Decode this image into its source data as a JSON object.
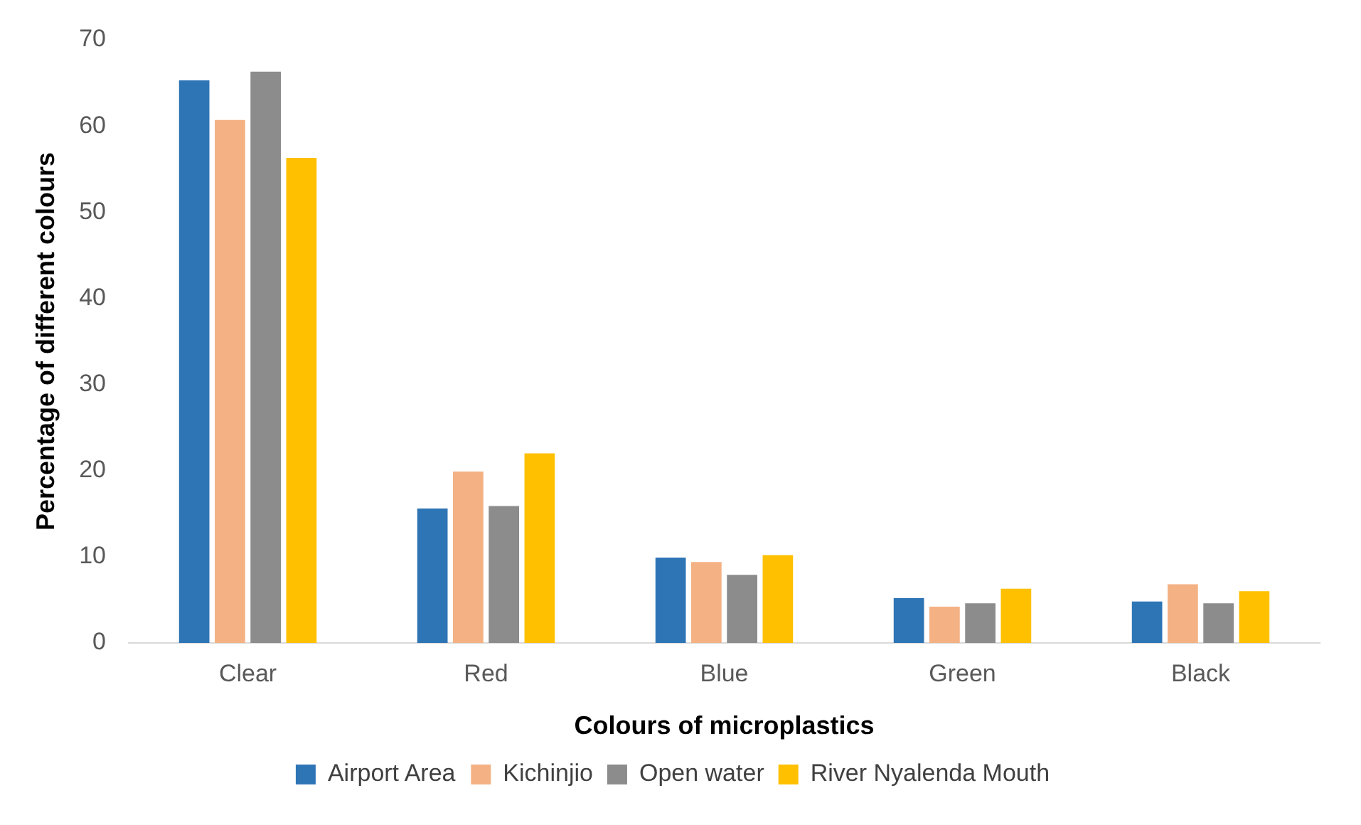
{
  "chart_data": {
    "type": "bar",
    "xlabel": "Colours of microplastics",
    "ylabel": "Percentage of different colours",
    "categories": [
      "Clear",
      "Red",
      "Blue",
      "Green",
      "Black"
    ],
    "series": [
      {
        "name": "Airport Area",
        "color": "#2e75b6",
        "values": [
          65.3,
          15.6,
          9.9,
          5.2,
          4.8
        ]
      },
      {
        "name": "Kichinjio",
        "color": "#f4b183",
        "values": [
          60.7,
          19.9,
          9.4,
          4.2,
          6.8
        ]
      },
      {
        "name": "Open water",
        "color": "#8c8c8c",
        "values": [
          66.3,
          15.9,
          7.9,
          4.6,
          4.6
        ]
      },
      {
        "name": "River Nyalenda Mouth",
        "color": "#ffc000",
        "values": [
          56.3,
          22.0,
          10.2,
          6.3,
          6.0
        ]
      }
    ],
    "ylim": [
      0,
      70
    ],
    "yticks": [
      0,
      10,
      20,
      30,
      40,
      50,
      60,
      70
    ],
    "grid": false,
    "legend": "bottom"
  }
}
